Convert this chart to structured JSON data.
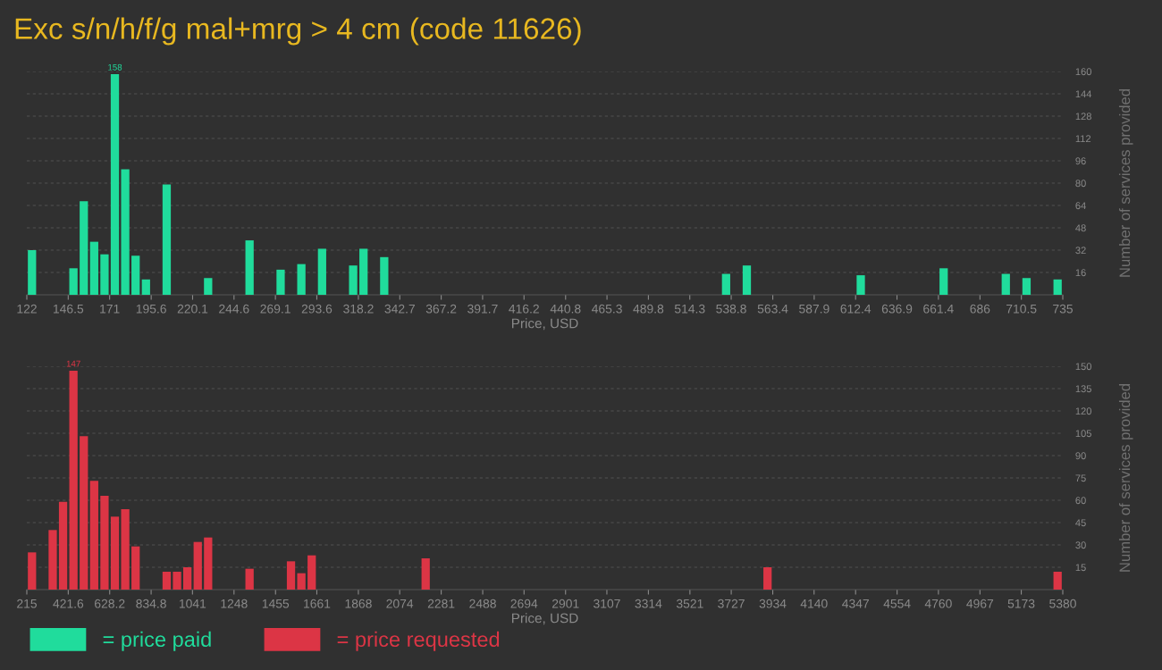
{
  "chart_data": [
    {
      "type": "histogram",
      "title": "Exc s/n/h/f/g mal+mrg > 4 cm (code 11626)",
      "xlabel": "Price, USD",
      "ylabel": "Number of services provided",
      "bins": [
        122,
        128.13,
        134.26,
        140.39,
        146.52,
        152.65,
        158.78,
        164.91,
        171.04,
        177.17,
        183.3,
        189.43,
        195.56,
        201.69,
        207.82,
        213.95,
        220.08,
        226.21,
        232.34,
        238.47,
        244.6,
        250.73,
        256.86,
        262.99,
        269.12,
        275.25,
        281.38,
        287.51,
        293.64,
        299.77,
        305.9,
        312.03,
        318.16,
        324.29,
        330.42,
        336.55,
        342.68,
        348.81,
        354.94,
        361.07,
        367.2,
        373.33,
        379.46,
        385.59,
        391.72,
        397.85,
        403.98,
        410.11,
        416.24,
        422.37,
        428.5,
        434.63,
        440.76,
        446.89,
        453.02,
        459.15,
        465.28,
        471.41,
        477.54,
        483.67,
        489.8,
        495.93,
        502.06,
        508.19,
        514.32,
        520.45,
        526.58,
        532.71,
        538.84,
        544.97,
        551.1,
        557.23,
        563.36,
        569.49,
        575.62,
        581.75,
        587.88,
        594.01,
        600.14,
        606.27,
        612.4,
        618.53,
        624.66,
        630.79,
        636.92,
        643.05,
        649.18,
        655.31,
        661.44,
        667.57,
        673.7,
        679.83,
        685.96,
        692.09,
        698.22,
        704.35,
        710.48,
        716.61,
        722.74,
        728.87,
        735
      ],
      "series": [
        {
          "name": "= price paid",
          "color": "#20dc9c",
          "values": [
            32,
            0,
            0,
            0,
            19,
            67,
            38,
            29,
            158,
            90,
            28,
            11,
            0,
            79,
            0,
            0,
            0,
            12,
            0,
            0,
            0,
            39,
            0,
            0,
            18,
            0,
            22,
            0,
            33,
            0,
            0,
            21,
            33,
            0,
            27,
            0,
            0,
            0,
            0,
            0,
            0,
            0,
            0,
            0,
            0,
            0,
            0,
            0,
            0,
            0,
            0,
            0,
            0,
            0,
            0,
            0,
            0,
            0,
            0,
            0,
            0,
            0,
            0,
            0,
            0,
            0,
            0,
            15,
            0,
            21,
            0,
            0,
            0,
            0,
            0,
            0,
            0,
            0,
            0,
            0,
            14,
            0,
            0,
            0,
            0,
            0,
            0,
            0,
            19,
            0,
            0,
            0,
            0,
            0,
            15,
            0,
            12,
            0,
            0,
            11
          ],
          "value_labels": [
            null,
            null,
            null,
            null,
            null,
            null,
            null,
            null,
            "158",
            null,
            null,
            null,
            null,
            null,
            null,
            null,
            null,
            null,
            null,
            null,
            null,
            null,
            null,
            null,
            null,
            null,
            null,
            null,
            null,
            null,
            null,
            null,
            null,
            null,
            null,
            null,
            null,
            null,
            null,
            null,
            null,
            null,
            null,
            null,
            null,
            null,
            null,
            null,
            null,
            null,
            null,
            null,
            null,
            null,
            null,
            null,
            null,
            null,
            null,
            null,
            null,
            null,
            null,
            null,
            null,
            null,
            null,
            null,
            null,
            null,
            null,
            null,
            null,
            null,
            null,
            null,
            null,
            null,
            null,
            null,
            null,
            null,
            null,
            null,
            null,
            null,
            null,
            null,
            null,
            null,
            null,
            null,
            null,
            null,
            null,
            null,
            null,
            null,
            null,
            null
          ]
        }
      ],
      "xlim": [
        122,
        735
      ],
      "xticks": [
        122,
        146.5,
        171,
        195.6,
        220.1,
        244.6,
        269.1,
        293.6,
        318.2,
        342.7,
        367.2,
        391.7,
        416.2,
        440.8,
        465.3,
        489.8,
        514.3,
        538.8,
        563.4,
        587.9,
        612.4,
        636.9,
        661.4,
        686,
        710.5,
        735
      ],
      "ylim": [
        0,
        160
      ],
      "yticks": [
        16,
        32,
        48,
        64,
        80,
        96,
        112,
        128,
        144,
        160
      ],
      "grid": "y",
      "legend": "bottom left"
    },
    {
      "type": "histogram",
      "xlabel": "Price, USD",
      "ylabel": "Number of services provided",
      "bins": [
        215,
        266.65,
        318.3,
        369.95,
        421.6,
        473.25,
        524.9,
        576.55,
        628.2,
        679.85,
        731.5,
        783.15,
        834.8,
        886.45,
        938.1,
        989.75,
        1041.4,
        1093.05,
        1144.7,
        1196.35,
        1248,
        1299.65,
        1351.3,
        1402.95,
        1454.6,
        1506.25,
        1557.9,
        1609.55,
        1661.2,
        1712.85,
        1764.5,
        1816.15,
        1867.8,
        1919.45,
        1971.1,
        2022.75,
        2074.4,
        2126.05,
        2177.7,
        2229.35,
        2281,
        2332.65,
        2384.3,
        2435.95,
        2487.6,
        2539.25,
        2590.9,
        2642.55,
        2694.2,
        2745.85,
        2797.5,
        2849.15,
        2900.8,
        2952.45,
        3004.1,
        3055.75,
        3107.4,
        3159.05,
        3210.7,
        3262.35,
        3314,
        3365.65,
        3417.3,
        3468.95,
        3520.6,
        3572.25,
        3623.9,
        3675.55,
        3727.2,
        3778.85,
        3830.5,
        3882.15,
        3933.8,
        3985.45,
        4037.1,
        4088.75,
        4140.4,
        4192.05,
        4243.7,
        4295.35,
        4347,
        4398.65,
        4450.3,
        4501.95,
        4553.6,
        4605.25,
        4656.9,
        4708.55,
        4760.2,
        4811.85,
        4863.5,
        4915.15,
        4966.8,
        5018.45,
        5070.1,
        5121.75,
        5173.4,
        5225.05,
        5276.7,
        5328.35,
        5380
      ],
      "series": [
        {
          "name": "= price requested",
          "color": "#dc3545",
          "values": [
            25,
            0,
            40,
            59,
            147,
            103,
            73,
            63,
            49,
            54,
            29,
            0,
            0,
            12,
            12,
            15,
            32,
            35,
            0,
            0,
            0,
            14,
            0,
            0,
            0,
            19,
            11,
            23,
            0,
            0,
            0,
            0,
            0,
            0,
            0,
            0,
            0,
            0,
            21,
            0,
            0,
            0,
            0,
            0,
            0,
            0,
            0,
            0,
            0,
            0,
            0,
            0,
            0,
            0,
            0,
            0,
            0,
            0,
            0,
            0,
            0,
            0,
            0,
            0,
            0,
            0,
            0,
            0,
            0,
            0,
            0,
            15,
            0,
            0,
            0,
            0,
            0,
            0,
            0,
            0,
            0,
            0,
            0,
            0,
            0,
            0,
            0,
            0,
            0,
            0,
            0,
            0,
            0,
            0,
            0,
            0,
            0,
            0,
            0,
            12
          ],
          "value_labels": [
            null,
            null,
            null,
            null,
            "147",
            null,
            null,
            null,
            null,
            null,
            null,
            null,
            null,
            null,
            null,
            null,
            null,
            null,
            null,
            null,
            null,
            null,
            null,
            null,
            null,
            null,
            null,
            null,
            null,
            null,
            null,
            null,
            null,
            null,
            null,
            null,
            null,
            null,
            null,
            null,
            null,
            null,
            null,
            null,
            null,
            null,
            null,
            null,
            null,
            null,
            null,
            null,
            null,
            null,
            null,
            null,
            null,
            null,
            null,
            null,
            null,
            null,
            null,
            null,
            null,
            null,
            null,
            null,
            null,
            null,
            null,
            null,
            null,
            null,
            null,
            null,
            null,
            null,
            null,
            null,
            null,
            null,
            null,
            null,
            null,
            null,
            null,
            null,
            null,
            null,
            null,
            null,
            null,
            null,
            null,
            null,
            null,
            null,
            null,
            null
          ]
        }
      ],
      "xlim": [
        215,
        5380
      ],
      "xticks": [
        215,
        421.6,
        628.2,
        834.8,
        1041,
        1248,
        1455,
        1661,
        1868,
        2074,
        2281,
        2488,
        2694,
        2901,
        3107,
        3314,
        3521,
        3727,
        3934,
        4140,
        4347,
        4554,
        4760,
        4967,
        5173,
        5380
      ],
      "ylim": [
        0,
        150
      ],
      "yticks": [
        15,
        30,
        45,
        60,
        75,
        90,
        105,
        120,
        135,
        150
      ],
      "grid": "y",
      "legend": "bottom left"
    }
  ]
}
